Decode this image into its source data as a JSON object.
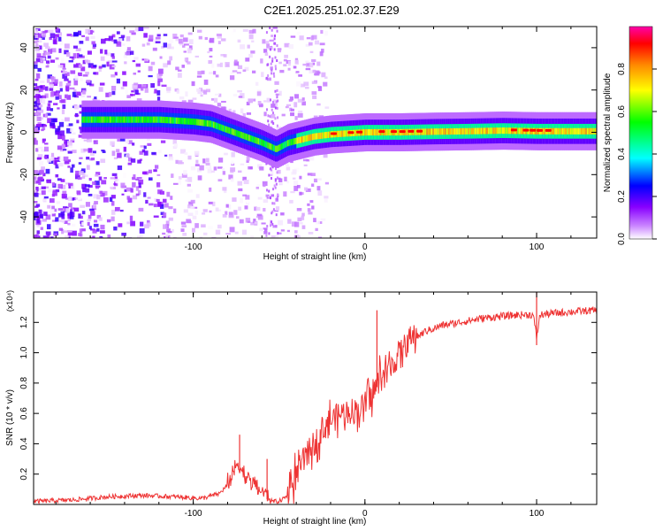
{
  "title": "C2E1.2025.251.02.37.E29",
  "chart_data": [
    {
      "type": "heatmap",
      "title": "C2E1.2025.251.02.37.E29",
      "xlabel": "Height of straight line (km)",
      "ylabel": "Frequency (Hz)",
      "xlim": [
        -193,
        135
      ],
      "ylim": [
        -50,
        50
      ],
      "x_ticks": [
        -100,
        0,
        100
      ],
      "y_ticks": [
        -40,
        -20,
        0,
        20,
        40
      ],
      "x_tick_labels": [
        "-100",
        "0",
        "100"
      ],
      "y_tick_labels": [
        "-40",
        "-20",
        "0",
        "20",
        "40"
      ],
      "ridge": {
        "x": [
          -160,
          -140,
          -120,
          -100,
          -90,
          -80,
          -70,
          -60,
          -52,
          -45,
          -40,
          -30,
          -20,
          -10,
          0,
          10,
          20,
          40,
          60,
          80,
          100,
          120,
          135
        ],
        "y": [
          6,
          6,
          6,
          5,
          4,
          1,
          -2,
          -5,
          -8,
          -5,
          -4,
          -2,
          -1,
          -0.5,
          0,
          0,
          0,
          0.3,
          0.5,
          0.8,
          0.5,
          0.5,
          0.5
        ]
      },
      "colorbar": {
        "label": "Normalized spectral amplitude",
        "range": [
          0,
          1
        ],
        "ticks": [
          0.0,
          0.2,
          0.4,
          0.6,
          0.8
        ],
        "tick_labels": [
          "0.0",
          "0.2",
          "0.4",
          "0.6",
          "0.8"
        ],
        "colormap": [
          "#ffffff",
          "#8800ff",
          "#0000ff",
          "#00ffff",
          "#00ff00",
          "#ffff00",
          "#ff8800",
          "#ff0000",
          "#ff00aa"
        ]
      }
    },
    {
      "type": "line",
      "xlabel": "Height of straight line (km)",
      "ylabel": "SNR (10 * v/v)",
      "y_multiplier": "(x10⁴)",
      "xlim": [
        -193,
        135
      ],
      "ylim": [
        0,
        1.4
      ],
      "x_ticks": [
        -100,
        0,
        100
      ],
      "x_tick_labels": [
        "-100",
        "0",
        "100"
      ],
      "y_ticks": [
        0.2,
        0.4,
        0.6,
        0.8,
        1.0,
        1.2
      ],
      "y_tick_labels": [
        "0.2",
        "0.4",
        "0.6",
        "0.8",
        "1.0",
        "1.2"
      ],
      "color": "#ee3333",
      "series": [
        {
          "name": "SNR",
          "x": [
            -193,
            -170,
            -150,
            -130,
            -110,
            -95,
            -85,
            -78,
            -74,
            -71,
            -68,
            -65,
            -62,
            -58,
            -54,
            -50,
            -46,
            -42,
            -38,
            -34,
            -30,
            -26,
            -22,
            -18,
            -14,
            -10,
            -6,
            -2,
            2,
            5,
            8,
            10,
            13,
            17,
            20,
            25,
            30,
            35,
            40,
            45,
            50,
            60,
            70,
            80,
            90,
            98,
            100,
            102,
            110,
            120,
            135
          ],
          "y": [
            0.02,
            0.03,
            0.05,
            0.06,
            0.05,
            0.04,
            0.07,
            0.15,
            0.25,
            0.18,
            0.14,
            0.12,
            0.08,
            0.04,
            0.02,
            0.02,
            0.05,
            0.12,
            0.22,
            0.3,
            0.38,
            0.44,
            0.52,
            0.55,
            0.58,
            0.6,
            0.6,
            0.62,
            0.66,
            0.72,
            0.8,
            0.82,
            0.85,
            0.92,
            0.98,
            1.05,
            1.1,
            1.14,
            1.16,
            1.18,
            1.19,
            1.21,
            1.23,
            1.24,
            1.25,
            1.25,
            1.1,
            1.25,
            1.26,
            1.27,
            1.28
          ]
        }
      ],
      "spikes": [
        {
          "x": -73,
          "y": 0.46
        },
        {
          "x": -57,
          "y": 0.3
        },
        {
          "x": 7,
          "y": 1.28
        },
        {
          "x": 100,
          "y": 1.4
        },
        {
          "x": 100,
          "y": 1.05
        }
      ]
    }
  ]
}
